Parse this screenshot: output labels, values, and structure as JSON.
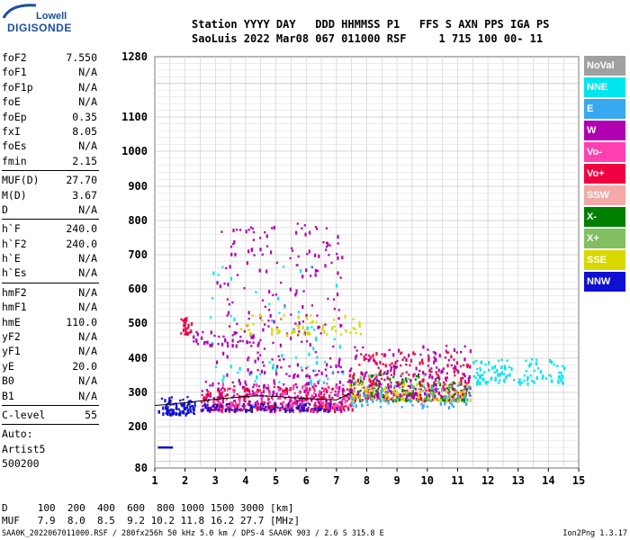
{
  "logo": {
    "line1": "Lowell",
    "line2": "DIGISONDE"
  },
  "header": {
    "line1": "Station YYYY DAY   DDD HHMMSS P1   FFS S AXN PPS IGA PS",
    "line2": "SaoLuis 2022 Mar08 067 011000 RSF     1 715 100 00- 11"
  },
  "params": {
    "group1": [
      {
        "k": "foF2",
        "v": "7.550"
      },
      {
        "k": "foF1",
        "v": "N/A"
      },
      {
        "k": "foF1p",
        "v": "N/A"
      },
      {
        "k": "foE",
        "v": "N/A"
      },
      {
        "k": "foEp",
        "v": "0.35"
      },
      {
        "k": "fxI",
        "v": "8.05"
      },
      {
        "k": "foEs",
        "v": "N/A"
      },
      {
        "k": "fmin",
        "v": "2.15"
      }
    ],
    "group2": [
      {
        "k": "MUF(D)",
        "v": "27.70"
      },
      {
        "k": "M(D)",
        "v": "3.67"
      },
      {
        "k": "D",
        "v": "N/A"
      }
    ],
    "group3": [
      {
        "k": "h`F",
        "v": "240.0"
      },
      {
        "k": "h`F2",
        "v": "240.0"
      },
      {
        "k": "h`E",
        "v": "N/A"
      },
      {
        "k": "h`Es",
        "v": "N/A"
      }
    ],
    "group4": [
      {
        "k": "hmF2",
        "v": "N/A"
      },
      {
        "k": "hmF1",
        "v": "N/A"
      },
      {
        "k": "hmE",
        "v": "110.0"
      },
      {
        "k": "yF2",
        "v": "N/A"
      },
      {
        "k": "yF1",
        "v": "N/A"
      },
      {
        "k": "yE",
        "v": "20.0"
      },
      {
        "k": "B0",
        "v": "N/A"
      },
      {
        "k": "B1",
        "v": "N/A"
      }
    ],
    "clevel": {
      "k": "C-level",
      "v": "55"
    },
    "auto": [
      "Auto:",
      "Artist5",
      "500200"
    ]
  },
  "legend": [
    {
      "label": "NoVal",
      "color": "#a0a0a0"
    },
    {
      "label": "NNE",
      "color": "#00e5ee"
    },
    {
      "label": "E",
      "color": "#38a8f0"
    },
    {
      "label": "W",
      "color": "#b000b0"
    },
    {
      "label": "Vo-",
      "color": "#ff40b0"
    },
    {
      "label": "Vo+",
      "color": "#f00040"
    },
    {
      "label": "SSW",
      "color": "#f4a8a8"
    },
    {
      "label": "X-",
      "color": "#008000"
    },
    {
      "label": "X+",
      "color": "#80c060"
    },
    {
      "label": "SSE",
      "color": "#d8d800"
    },
    {
      "label": "NNW",
      "color": "#1010d0"
    }
  ],
  "dmuf": {
    "line1": "D     100  200  400  600  800 1000 1500 3000 [km]",
    "line2": "MUF   7.9  8.0  8.5  9.2 10.2 11.8 16.2 27.7 [MHz]"
  },
  "footer": "SAA0K_2022067011000.RSF / 280fx256h 50 kHz 5.0 km / DPS-4 SAA0K 903 / 2.6 S 315.8 E",
  "version": "Ion2Png 1.3.17",
  "chart_data": {
    "type": "scatter",
    "x_ticks": [
      "1",
      "2",
      "3",
      "4",
      "5",
      "6",
      "7",
      "8",
      "9",
      "10",
      "11",
      "12",
      "13",
      "14",
      "15"
    ],
    "y_ticks": [
      "80",
      "200",
      "300",
      "400",
      "500",
      "600",
      "700",
      "800",
      "900",
      "1000",
      "1100",
      "1280"
    ],
    "xlim": [
      1,
      15
    ],
    "ylim": [
      80,
      1280
    ],
    "grid": true,
    "trace": {
      "x": [
        1,
        1.5,
        2,
        2.5,
        3,
        3.5,
        4,
        4.5,
        5,
        5.5,
        6,
        6.5,
        7,
        7.5
      ],
      "y": [
        262,
        265,
        270,
        275,
        280,
        284,
        288,
        290,
        288,
        285,
        282,
        280,
        278,
        300
      ]
    },
    "clusters": [
      {
        "color": "#1010d0",
        "x": [
          1.1,
          2.3
        ],
        "y": [
          240,
          290
        ],
        "n": 90
      },
      {
        "color": "#b000b0",
        "x": [
          2.5,
          7.5
        ],
        "y": [
          250,
          340
        ],
        "n": 260
      },
      {
        "color": "#f00040",
        "x": [
          2.5,
          7.5
        ],
        "y": [
          250,
          320
        ],
        "n": 200
      },
      {
        "color": "#ff40b0",
        "x": [
          3,
          7.5
        ],
        "y": [
          260,
          330
        ],
        "n": 120
      },
      {
        "color": "#1010d0",
        "x": [
          2.5,
          7
        ],
        "y": [
          250,
          270
        ],
        "n": 80
      },
      {
        "color": "#b000b0",
        "x": [
          3,
          7.2
        ],
        "y": [
          350,
          800
        ],
        "n": 220
      },
      {
        "color": "#00e5ee",
        "x": [
          2.8,
          7.2
        ],
        "y": [
          330,
          700
        ],
        "n": 60
      },
      {
        "color": "#f00040",
        "x": [
          7.4,
          11.4
        ],
        "y": [
          280,
          420
        ],
        "n": 220
      },
      {
        "color": "#b000b0",
        "x": [
          7.4,
          11.4
        ],
        "y": [
          290,
          440
        ],
        "n": 200
      },
      {
        "color": "#008000",
        "x": [
          7.4,
          11.4
        ],
        "y": [
          280,
          360
        ],
        "n": 90
      },
      {
        "color": "#d8d800",
        "x": [
          7.4,
          11.4
        ],
        "y": [
          280,
          330
        ],
        "n": 80
      },
      {
        "color": "#80c060",
        "x": [
          7.4,
          11.4
        ],
        "y": [
          280,
          360
        ],
        "n": 60
      },
      {
        "color": "#38a8f0",
        "x": [
          7.4,
          11.4
        ],
        "y": [
          260,
          330
        ],
        "n": 60
      },
      {
        "color": "#00e5ee",
        "x": [
          11.5,
          14.5
        ],
        "y": [
          330,
          400
        ],
        "n": 110
      },
      {
        "color": "#d8d800",
        "x": [
          3.8,
          7.8
        ],
        "y": [
          470,
          530
        ],
        "n": 60
      },
      {
        "color": "#f00040",
        "x": [
          1.8,
          2.2
        ],
        "y": [
          470,
          520
        ],
        "n": 25
      },
      {
        "color": "#b000b0",
        "x": [
          2.2,
          4.4
        ],
        "y": [
          440,
          480
        ],
        "n": 40
      }
    ]
  }
}
